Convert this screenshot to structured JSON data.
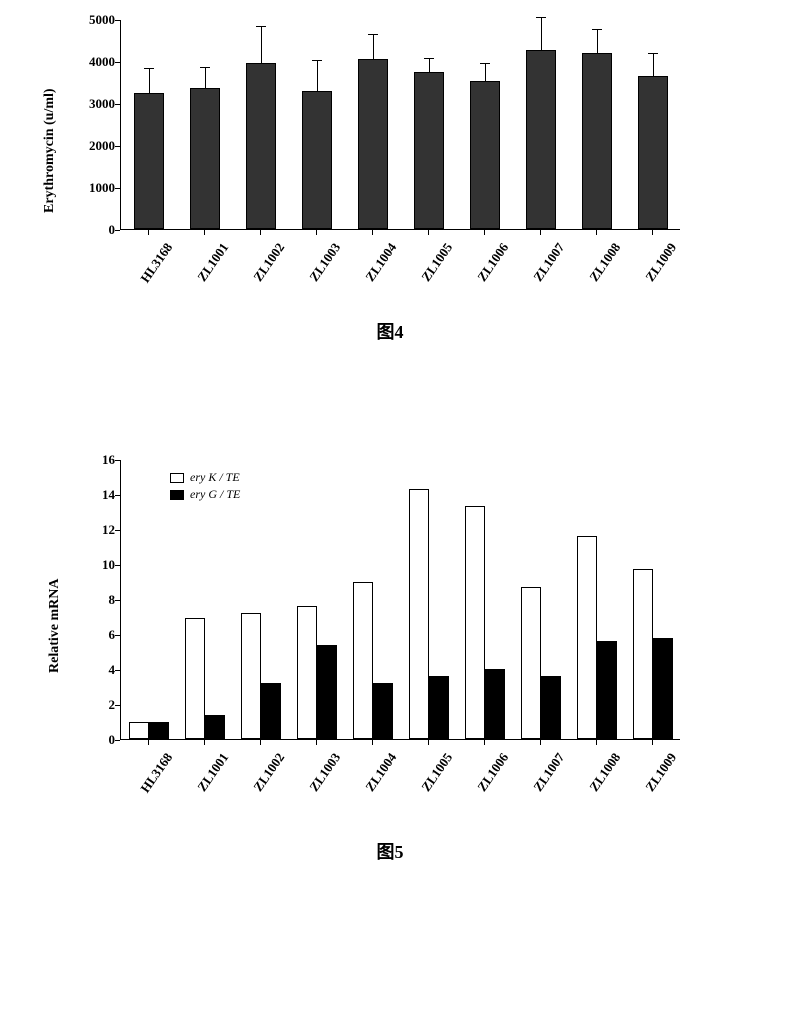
{
  "figure4": {
    "type": "bar",
    "caption": "图4",
    "ylabel": "Erythromycin (u/ml)",
    "label_fontsize": 14,
    "ylim": [
      0,
      5000
    ],
    "ytick_step": 1000,
    "yticks": [
      0,
      1000,
      2000,
      3000,
      4000,
      5000
    ],
    "categories": [
      "HL3168",
      "ZL1001",
      "ZL1002",
      "ZL1003",
      "ZL1004",
      "ZL1005",
      "ZL1006",
      "ZL1007",
      "ZL1008",
      "ZL1009"
    ],
    "values": [
      3250,
      3350,
      3950,
      3280,
      4050,
      3750,
      3520,
      4260,
      4180,
      3650
    ],
    "errors": [
      550,
      480,
      850,
      720,
      560,
      300,
      400,
      760,
      560,
      520
    ],
    "bar_color": "#333333",
    "bar_width": 0.55,
    "background_color": "#ffffff",
    "axis_color": "#000000",
    "tick_fontsize": 13,
    "xlabel_fontsize": 13
  },
  "figure5": {
    "type": "grouped-bar",
    "caption": "图5",
    "ylabel": "Relative mRNA",
    "label_fontsize": 14,
    "ylim": [
      0,
      16
    ],
    "ytick_step": 2,
    "yticks": [
      0,
      2,
      4,
      6,
      8,
      10,
      12,
      14,
      16
    ],
    "categories": [
      "HL3168",
      "ZL1001",
      "ZL1002",
      "ZL1003",
      "ZL1004",
      "ZL1005",
      "ZL1006",
      "ZL1007",
      "ZL1008",
      "ZL1009"
    ],
    "series": [
      {
        "name": "ery K / TE",
        "color": "#ffffff",
        "border": "#000000",
        "values": [
          1.0,
          6.9,
          7.2,
          7.6,
          9.0,
          14.3,
          13.3,
          8.7,
          11.6,
          9.7
        ]
      },
      {
        "name": "ery G / TE",
        "color": "#000000",
        "border": "#000000",
        "values": [
          1.0,
          1.4,
          3.2,
          5.4,
          3.2,
          3.6,
          4.0,
          3.6,
          5.6,
          5.8
        ]
      }
    ],
    "bar_width": 0.35,
    "background_color": "#ffffff",
    "axis_color": "#000000",
    "tick_fontsize": 13,
    "xlabel_fontsize": 13,
    "legend_fontsize": 12
  }
}
